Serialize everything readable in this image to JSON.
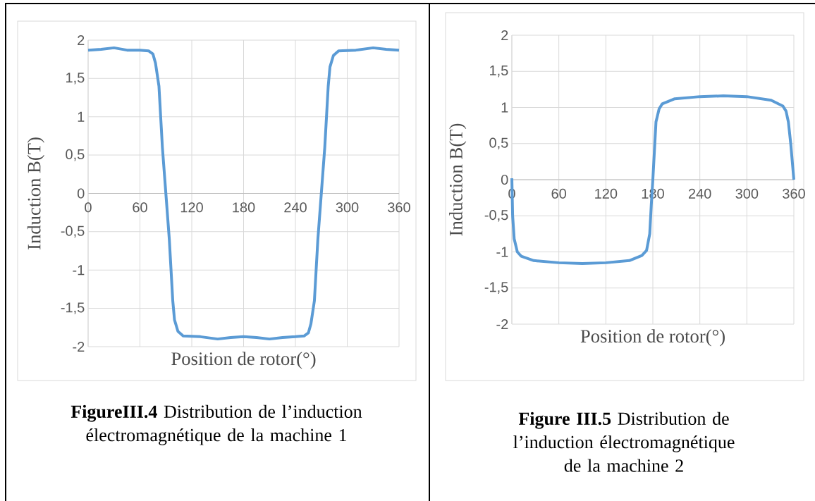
{
  "chart_data": [
    {
      "type": "line",
      "xlabel": "Position de rotor(°)",
      "ylabel": "Induction B(T)",
      "x": [
        0,
        15,
        30,
        45,
        60,
        70,
        75,
        78,
        82,
        86,
        90,
        94,
        98,
        100,
        104,
        110,
        130,
        150,
        165,
        180,
        195,
        210,
        225,
        240,
        250,
        255,
        258,
        262,
        266,
        270,
        274,
        278,
        280,
        284,
        290,
        310,
        330,
        345,
        360
      ],
      "series": [
        {
          "color": "#5b9bd5",
          "values": [
            1.87,
            1.88,
            1.9,
            1.87,
            1.87,
            1.86,
            1.82,
            1.7,
            1.4,
            0.6,
            0,
            -0.6,
            -1.4,
            -1.65,
            -1.8,
            -1.86,
            -1.87,
            -1.9,
            -1.88,
            -1.87,
            -1.88,
            -1.9,
            -1.88,
            -1.87,
            -1.86,
            -1.82,
            -1.7,
            -1.4,
            -0.6,
            0,
            0.6,
            1.4,
            1.65,
            1.8,
            1.86,
            1.87,
            1.9,
            1.88,
            1.87
          ]
        }
      ],
      "xlim": [
        0,
        360
      ],
      "xticks": [
        0,
        60,
        120,
        180,
        240,
        300,
        360
      ],
      "ylim": [
        -2,
        2
      ],
      "yticks": [
        {
          "value": -2,
          "label": "-2"
        },
        {
          "value": -1.5,
          "label": "-1,5"
        },
        {
          "value": -1,
          "label": "-1"
        },
        {
          "value": -0.5,
          "label": "-0,5"
        },
        {
          "value": 0,
          "label": "0"
        },
        {
          "value": 0.5,
          "label": "0,5"
        },
        {
          "value": 1,
          "label": "1"
        },
        {
          "value": 1.5,
          "label": "1,5"
        },
        {
          "value": 2,
          "label": "2"
        }
      ],
      "grid": true,
      "line_style": "solid",
      "annotations": [
        "**FigureIII.4** Distribution de l’induction électromagnétique de la machine 1"
      ]
    },
    {
      "type": "line",
      "xlabel": "Position de rotor(°)",
      "ylabel": "Induction B(T)",
      "x": [
        0,
        1,
        3,
        7,
        12,
        28,
        60,
        90,
        120,
        150,
        166,
        172,
        176,
        178,
        180,
        182,
        184,
        188,
        192,
        208,
        240,
        270,
        300,
        331,
        346,
        350,
        353,
        356,
        360
      ],
      "series": [
        {
          "color": "#5b9bd5",
          "values": [
            0.02,
            -0.5,
            -0.82,
            -1.0,
            -1.06,
            -1.12,
            -1.15,
            -1.16,
            -1.15,
            -1.12,
            -1.05,
            -0.98,
            -0.75,
            -0.35,
            0,
            0.4,
            0.8,
            0.98,
            1.05,
            1.12,
            1.15,
            1.16,
            1.15,
            1.1,
            1.02,
            0.95,
            0.8,
            0.5,
            0
          ]
        }
      ],
      "xlim": [
        0,
        360
      ],
      "xticks": [
        0,
        60,
        120,
        180,
        240,
        300,
        360
      ],
      "ylim": [
        -2,
        2
      ],
      "yticks": [
        {
          "value": -2,
          "label": "-2"
        },
        {
          "value": -1.5,
          "label": "-1,5"
        },
        {
          "value": -1,
          "label": "-1"
        },
        {
          "value": -0.5,
          "label": "-0,5"
        },
        {
          "value": 0,
          "label": "0"
        },
        {
          "value": 0.5,
          "label": "0,5"
        },
        {
          "value": 1,
          "label": "1"
        },
        {
          "value": 1.5,
          "label": "1,5"
        },
        {
          "value": 2,
          "label": "2"
        }
      ],
      "grid": true,
      "line_style": "solid",
      "annotations": [
        "**Figure III.5** Distribution de l’induction électromagnétique de la machine 2"
      ]
    }
  ]
}
